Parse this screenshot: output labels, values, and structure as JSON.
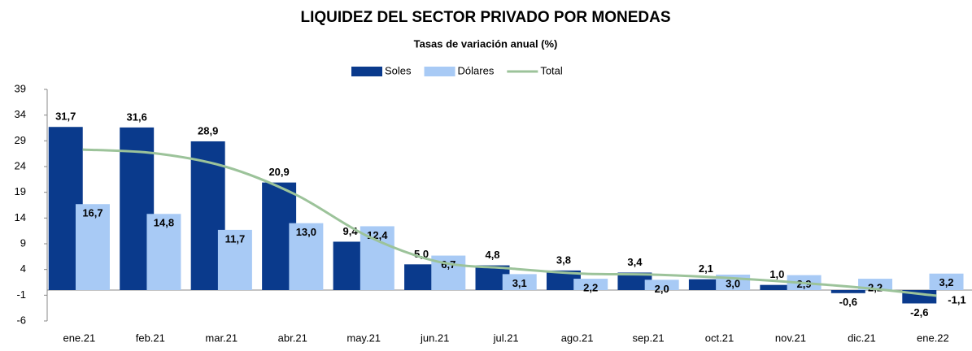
{
  "chart_data": {
    "type": "bar",
    "title": "LIQUIDEZ DEL SECTOR PRIVADO POR MONEDAS",
    "subtitle": "Tasas de variación anual (%)",
    "categories": [
      "ene.21",
      "feb.21",
      "mar.21",
      "abr.21",
      "may.21",
      "jun.21",
      "jul.21",
      "ago.21",
      "sep.21",
      "oct.21",
      "nov.21",
      "dic.21",
      "ene.22"
    ],
    "series": [
      {
        "name": "Soles",
        "color": "#0a3a8c",
        "type": "bar",
        "values": [
          31.7,
          31.6,
          28.9,
          20.9,
          9.4,
          5.0,
          4.8,
          3.8,
          3.4,
          2.1,
          1.0,
          -0.6,
          -2.6
        ],
        "value_labels": [
          "31,7",
          "31,6",
          "28,9",
          "20,9",
          "9,4",
          "5,0",
          "4,8",
          "3,8",
          "3,4",
          "2,1",
          "1,0",
          "-0,6",
          "-2,6"
        ]
      },
      {
        "name": "Dólares",
        "color": "#a8caf5",
        "type": "bar",
        "values": [
          16.7,
          14.8,
          11.7,
          13.0,
          12.4,
          6.7,
          3.1,
          2.2,
          2.0,
          3.0,
          2.9,
          2.2,
          3.2
        ],
        "value_labels": [
          "16,7",
          "14,8",
          "11,7",
          "13,0",
          "12,4",
          "6,7",
          "3,1",
          "2,2",
          "2,0",
          "3,0",
          "2,9",
          "2,2",
          "3,2"
        ]
      },
      {
        "name": "Total",
        "color": "#9cc39a",
        "type": "line",
        "values": [
          27.3,
          26.6,
          24.0,
          18.5,
          10.5,
          5.5,
          4.2,
          3.2,
          3.0,
          2.4,
          1.5,
          0.4,
          -1.1
        ],
        "value_labels": [
          null,
          null,
          null,
          null,
          null,
          null,
          null,
          null,
          null,
          null,
          null,
          null,
          "-1,1"
        ]
      }
    ],
    "ylim": [
      -6,
      39
    ],
    "yticks": [
      -6,
      -1,
      4,
      9,
      14,
      19,
      24,
      29,
      34,
      39
    ],
    "legend": "top"
  }
}
